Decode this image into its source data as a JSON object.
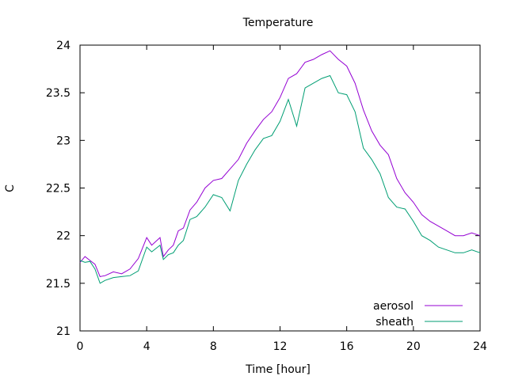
{
  "chart_data": {
    "type": "line",
    "title": "Temperature",
    "xlabel": "Time [hour]",
    "ylabel": "C",
    "xlim": [
      0,
      24
    ],
    "ylim": [
      21,
      24
    ],
    "xticks": [
      0,
      4,
      8,
      12,
      16,
      20,
      24
    ],
    "yticks": [
      21,
      21.5,
      22,
      22.5,
      23,
      23.5,
      24
    ],
    "ytick_labels": [
      "21",
      "21.5",
      "22",
      "22.5",
      "23",
      "23.5",
      "24"
    ],
    "grid": false,
    "legend_position": "bottom-right",
    "series": [
      {
        "name": "aerosol",
        "color": "#9400d3",
        "points": [
          [
            0,
            21.72
          ],
          [
            0.3,
            21.78
          ],
          [
            0.6,
            21.74
          ],
          [
            0.9,
            21.7
          ],
          [
            1.2,
            21.57
          ],
          [
            1.5,
            21.58
          ],
          [
            2.0,
            21.62
          ],
          [
            2.5,
            21.6
          ],
          [
            3.0,
            21.65
          ],
          [
            3.5,
            21.76
          ],
          [
            4.0,
            21.98
          ],
          [
            4.3,
            21.9
          ],
          [
            4.8,
            21.98
          ],
          [
            5.0,
            21.78
          ],
          [
            5.3,
            21.85
          ],
          [
            5.6,
            21.9
          ],
          [
            5.9,
            22.05
          ],
          [
            6.2,
            22.08
          ],
          [
            6.6,
            22.27
          ],
          [
            7.0,
            22.35
          ],
          [
            7.5,
            22.5
          ],
          [
            8.0,
            22.58
          ],
          [
            8.5,
            22.6
          ],
          [
            9.0,
            22.7
          ],
          [
            9.5,
            22.8
          ],
          [
            10.0,
            22.97
          ],
          [
            10.5,
            23.1
          ],
          [
            11.0,
            23.22
          ],
          [
            11.5,
            23.3
          ],
          [
            12.0,
            23.45
          ],
          [
            12.5,
            23.65
          ],
          [
            13.0,
            23.7
          ],
          [
            13.5,
            23.82
          ],
          [
            14.0,
            23.85
          ],
          [
            14.5,
            23.9
          ],
          [
            15.0,
            23.94
          ],
          [
            15.5,
            23.85
          ],
          [
            16.0,
            23.78
          ],
          [
            16.5,
            23.6
          ],
          [
            17.0,
            23.32
          ],
          [
            17.5,
            23.1
          ],
          [
            18.0,
            22.95
          ],
          [
            18.5,
            22.85
          ],
          [
            19.0,
            22.6
          ],
          [
            19.5,
            22.45
          ],
          [
            20.0,
            22.35
          ],
          [
            20.5,
            22.22
          ],
          [
            21.0,
            22.15
          ],
          [
            21.5,
            22.1
          ],
          [
            22.0,
            22.05
          ],
          [
            22.5,
            22.0
          ],
          [
            23.0,
            22.0
          ],
          [
            23.5,
            22.03
          ],
          [
            24.0,
            22.0
          ]
        ]
      },
      {
        "name": "sheath",
        "color": "#009e73",
        "points": [
          [
            0,
            21.74
          ],
          [
            0.3,
            21.72
          ],
          [
            0.6,
            21.73
          ],
          [
            0.9,
            21.65
          ],
          [
            1.2,
            21.5
          ],
          [
            1.5,
            21.53
          ],
          [
            2.0,
            21.56
          ],
          [
            2.5,
            21.57
          ],
          [
            3.0,
            21.58
          ],
          [
            3.5,
            21.63
          ],
          [
            4.0,
            21.88
          ],
          [
            4.3,
            21.83
          ],
          [
            4.8,
            21.9
          ],
          [
            5.0,
            21.75
          ],
          [
            5.3,
            21.8
          ],
          [
            5.6,
            21.82
          ],
          [
            5.9,
            21.9
          ],
          [
            6.2,
            21.95
          ],
          [
            6.6,
            22.17
          ],
          [
            7.0,
            22.2
          ],
          [
            7.5,
            22.3
          ],
          [
            8.0,
            22.43
          ],
          [
            8.5,
            22.4
          ],
          [
            9.0,
            22.26
          ],
          [
            9.5,
            22.58
          ],
          [
            10.0,
            22.75
          ],
          [
            10.5,
            22.9
          ],
          [
            11.0,
            23.02
          ],
          [
            11.5,
            23.05
          ],
          [
            12.0,
            23.2
          ],
          [
            12.5,
            23.43
          ],
          [
            13.0,
            23.15
          ],
          [
            13.5,
            23.55
          ],
          [
            14.0,
            23.6
          ],
          [
            14.5,
            23.65
          ],
          [
            15.0,
            23.68
          ],
          [
            15.5,
            23.5
          ],
          [
            16.0,
            23.48
          ],
          [
            16.5,
            23.3
          ],
          [
            17.0,
            22.92
          ],
          [
            17.5,
            22.8
          ],
          [
            18.0,
            22.65
          ],
          [
            18.5,
            22.4
          ],
          [
            19.0,
            22.3
          ],
          [
            19.5,
            22.28
          ],
          [
            20.0,
            22.15
          ],
          [
            20.5,
            22.0
          ],
          [
            21.0,
            21.95
          ],
          [
            21.5,
            21.88
          ],
          [
            22.0,
            21.85
          ],
          [
            22.5,
            21.82
          ],
          [
            23.0,
            21.82
          ],
          [
            23.5,
            21.85
          ],
          [
            24.0,
            21.82
          ]
        ]
      }
    ]
  }
}
